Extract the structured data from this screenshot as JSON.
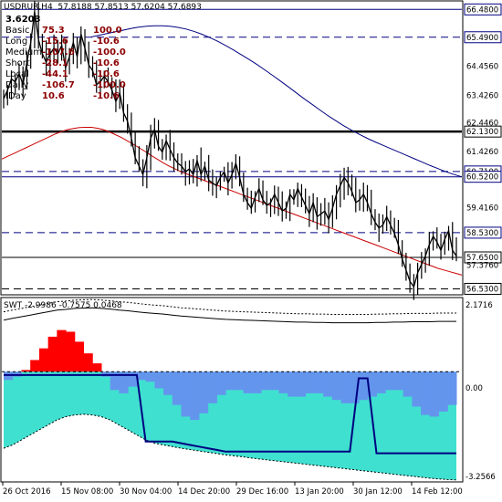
{
  "header": {
    "symbol": "USDRUR,H4",
    "ohlc": "57.8188 57.8513 57.6204 57.6893"
  },
  "info_panel": {
    "value": "3.6203",
    "rows": [
      {
        "label": "Basic",
        "v1": "75.3",
        "v2": "100.0"
      },
      {
        "label": "Long",
        "v1": "-15.6",
        "v2": "-10.6"
      },
      {
        "label": "Medium",
        "v1": "-107.6",
        "v2": "-100.0"
      },
      {
        "label": "Short",
        "v1": "-28.1",
        "v2": "-10.6"
      },
      {
        "label": "Local",
        "v1": "-44.1",
        "v2": "-10.6"
      },
      {
        "label": "Daily",
        "v1": "-106.7",
        "v2": "-100.0"
      },
      {
        "label": "IDay",
        "v1": "10.6",
        "v2": "-10.6"
      }
    ]
  },
  "indicator": {
    "title": "SWT -2.9986 -0.7575 0.0468",
    "max_label": "2.1716",
    "zero_label": "0.00",
    "min_label": "-3.2566"
  },
  "colors": {
    "price_line": "#000000",
    "ma_red": "#cc0000",
    "ma_blue": "#000080",
    "level_line": "#000080",
    "tag_bg": "#ffffff",
    "red_fill": "#ff0000",
    "cyan_fill": "#40e0d0",
    "blue_fill": "#6495ed"
  },
  "chart_data": {
    "type": "line",
    "title": "",
    "x_ticks": [
      "26 Oct 2016",
      "15 Nov 08:00",
      "30 Nov 04:00",
      "14 Dec 20:00",
      "29 Dec 16:00",
      "13 Jan 20:00",
      "30 Jan 12:00",
      "14 Feb 12:00"
    ],
    "y_ticks": [
      "66.4800",
      "65.4900",
      "64.4560",
      "63.4260",
      "62.4460",
      "62.1300",
      "61.4260",
      "60.7100",
      "60.5200",
      "59.4160",
      "58.5300",
      "57.6500",
      "57.3760",
      "56.5300"
    ],
    "ylim": [
      56.35,
      66.75
    ],
    "levels": [
      {
        "value": 66.48,
        "label": "66.4800",
        "style": "solid",
        "color": "#000080"
      },
      {
        "value": 65.49,
        "label": "65.4900",
        "style": "dash",
        "color": "#000080"
      },
      {
        "value": 62.13,
        "label": "62.1300",
        "style": "thick",
        "color": "#000000"
      },
      {
        "value": 60.71,
        "label": "60.7100",
        "style": "dash",
        "color": "#000080"
      },
      {
        "value": 60.52,
        "label": "60.5200",
        "style": "solid",
        "color": "#000080"
      },
      {
        "value": 58.53,
        "label": "58.5300",
        "style": "dash",
        "color": "#000080"
      },
      {
        "value": 57.65,
        "label": "57.6500",
        "style": "solid",
        "color": "#000000"
      },
      {
        "value": 56.53,
        "label": "56.5300",
        "style": "dash",
        "color": "#000000"
      }
    ],
    "series": [
      {
        "key": "price",
        "values": [
          63.3,
          63.6,
          64.0,
          63.9,
          64.2,
          63.8,
          64.6,
          65.3,
          66.4,
          65.4,
          64.9,
          64.6,
          64.9,
          65.1,
          64.9,
          65.2,
          64.4,
          64.8,
          65.3,
          64.8,
          65.6,
          65.1,
          64.5,
          64.3,
          63.8,
          63.9,
          64.1,
          63.9,
          63.6,
          63.2,
          63.5,
          62.8,
          62.5,
          61.9,
          61.2,
          60.9,
          60.6,
          61.2,
          61.9,
          62.2,
          61.6,
          61.4,
          61.8,
          61.5,
          61.2,
          61.0,
          60.9,
          60.7,
          60.8,
          60.6,
          61.1,
          60.6,
          60.9,
          60.4,
          60.3,
          60.2,
          60.5,
          60.7,
          60.3,
          60.6,
          61.0,
          60.5,
          59.9,
          59.6,
          59.4,
          59.8,
          60.1,
          59.7,
          59.5,
          59.6,
          59.9,
          59.6,
          59.3,
          59.4,
          59.9,
          59.7,
          60.1,
          59.8,
          59.5,
          59.2,
          59.6,
          59.1,
          59.2,
          59.3,
          59.0,
          59.4,
          59.9,
          60.2,
          60.5,
          60.3,
          60.0,
          59.6,
          59.7,
          59.9,
          59.6,
          59.2,
          58.9,
          58.7,
          58.8,
          59.1,
          58.8,
          58.5,
          58.1,
          57.6,
          57.2,
          56.8,
          56.6,
          57.1,
          57.4,
          57.7,
          58.1,
          58.4,
          58.2,
          57.9,
          58.3,
          58.6,
          57.9,
          57.7
        ]
      },
      {
        "key": "ma_red",
        "values": [
          61.15,
          61.25,
          61.35,
          61.45,
          61.55,
          61.65,
          61.75,
          61.85,
          61.95,
          62.05,
          62.13,
          62.2,
          62.24,
          62.27,
          62.28,
          62.28,
          62.25,
          62.2,
          62.12,
          62.02,
          61.92,
          61.8,
          61.68,
          61.55,
          61.42,
          61.28,
          61.15,
          61.02,
          60.9,
          60.8,
          60.7,
          60.62,
          60.54,
          60.46,
          60.38,
          60.3,
          60.22,
          60.14,
          60.06,
          59.98,
          59.9,
          59.82,
          59.74,
          59.66,
          59.58,
          59.5,
          59.42,
          59.34,
          59.26,
          59.18,
          59.1,
          59.02,
          58.94,
          58.86,
          58.78,
          58.7,
          58.62,
          58.54,
          58.46,
          58.38,
          58.3,
          58.22,
          58.14,
          58.06,
          57.98,
          57.9,
          57.82,
          57.74,
          57.66,
          57.58,
          57.5,
          57.42,
          57.34,
          57.26,
          57.2,
          57.14,
          57.08,
          57.02
        ]
      },
      {
        "key": "ma_blue",
        "values": [
          65.5,
          65.56,
          65.62,
          65.68,
          65.74,
          65.8,
          65.85,
          65.88,
          65.9,
          65.9,
          65.88,
          65.84,
          65.78,
          65.7,
          65.6,
          65.48,
          65.35,
          65.2,
          65.04,
          64.87,
          64.7,
          64.52,
          64.33,
          64.13,
          63.93,
          63.72,
          63.51,
          63.3,
          63.1,
          62.9,
          62.7,
          62.52,
          62.34,
          62.18,
          62.03,
          61.89,
          61.76,
          61.64,
          61.52,
          61.4,
          61.28,
          61.16,
          61.04,
          60.92,
          60.81,
          60.7,
          60.6,
          60.52
        ]
      }
    ],
    "swt_series": [
      {
        "key": "histogram",
        "values": [
          -0.3,
          -0.2,
          -0.1,
          0.2,
          0.5,
          0.9,
          1.2,
          1.3,
          1.1,
          0.7,
          0.4,
          0.1,
          -0.4,
          -0.7,
          -0.6,
          -0.3,
          -0.2,
          -0.4,
          -0.6,
          -0.8,
          -1.2,
          -1.5,
          -1.4,
          -1.1,
          -0.8,
          -0.6,
          -0.5,
          -0.6,
          -0.7,
          -0.6,
          -0.5,
          -0.6,
          -0.7,
          -0.8,
          -0.7,
          -0.6,
          -0.7,
          -0.8,
          -0.9,
          -1.0,
          -0.9,
          -0.8,
          -0.7,
          -0.6,
          -0.5,
          -0.6,
          -0.9,
          -1.2,
          -1.4,
          -1.3,
          -1.1,
          -0.9
        ]
      },
      {
        "key": "band_upper",
        "values": [
          1.8,
          1.85,
          1.9,
          1.95,
          2.0,
          2.05,
          2.1,
          2.12,
          2.15,
          2.16,
          2.17,
          2.15,
          2.13,
          2.1,
          2.08,
          2.05,
          2.02,
          2.0,
          1.98,
          1.95,
          1.92,
          1.9,
          1.88,
          1.86,
          1.84,
          1.82,
          1.81,
          1.8,
          1.79,
          1.78,
          1.77,
          1.76,
          1.75,
          1.74,
          1.74,
          1.73,
          1.73,
          1.72,
          1.72,
          1.72,
          1.72,
          1.72,
          1.73,
          1.73,
          1.74,
          1.74,
          1.75,
          1.75,
          1.75,
          1.76,
          1.76,
          1.76
        ]
      },
      {
        "key": "band_lower",
        "values": [
          -2.3,
          -2.2,
          -2.05,
          -1.9,
          -1.75,
          -1.6,
          -1.45,
          -1.35,
          -1.3,
          -1.28,
          -1.3,
          -1.35,
          -1.45,
          -1.6,
          -1.75,
          -1.9,
          -2.05,
          -2.15,
          -2.2,
          -2.25,
          -2.3,
          -2.34,
          -2.38,
          -2.42,
          -2.46,
          -2.5,
          -2.53,
          -2.56,
          -2.6,
          -2.63,
          -2.66,
          -2.69,
          -2.72,
          -2.75,
          -2.78,
          -2.81,
          -2.84,
          -2.87,
          -2.9,
          -2.93,
          -2.96,
          -2.99,
          -3.02,
          -3.05,
          -3.08,
          -3.11,
          -3.14,
          -3.17,
          -3.2,
          -3.22,
          -3.24,
          -3.25
        ]
      }
    ]
  }
}
